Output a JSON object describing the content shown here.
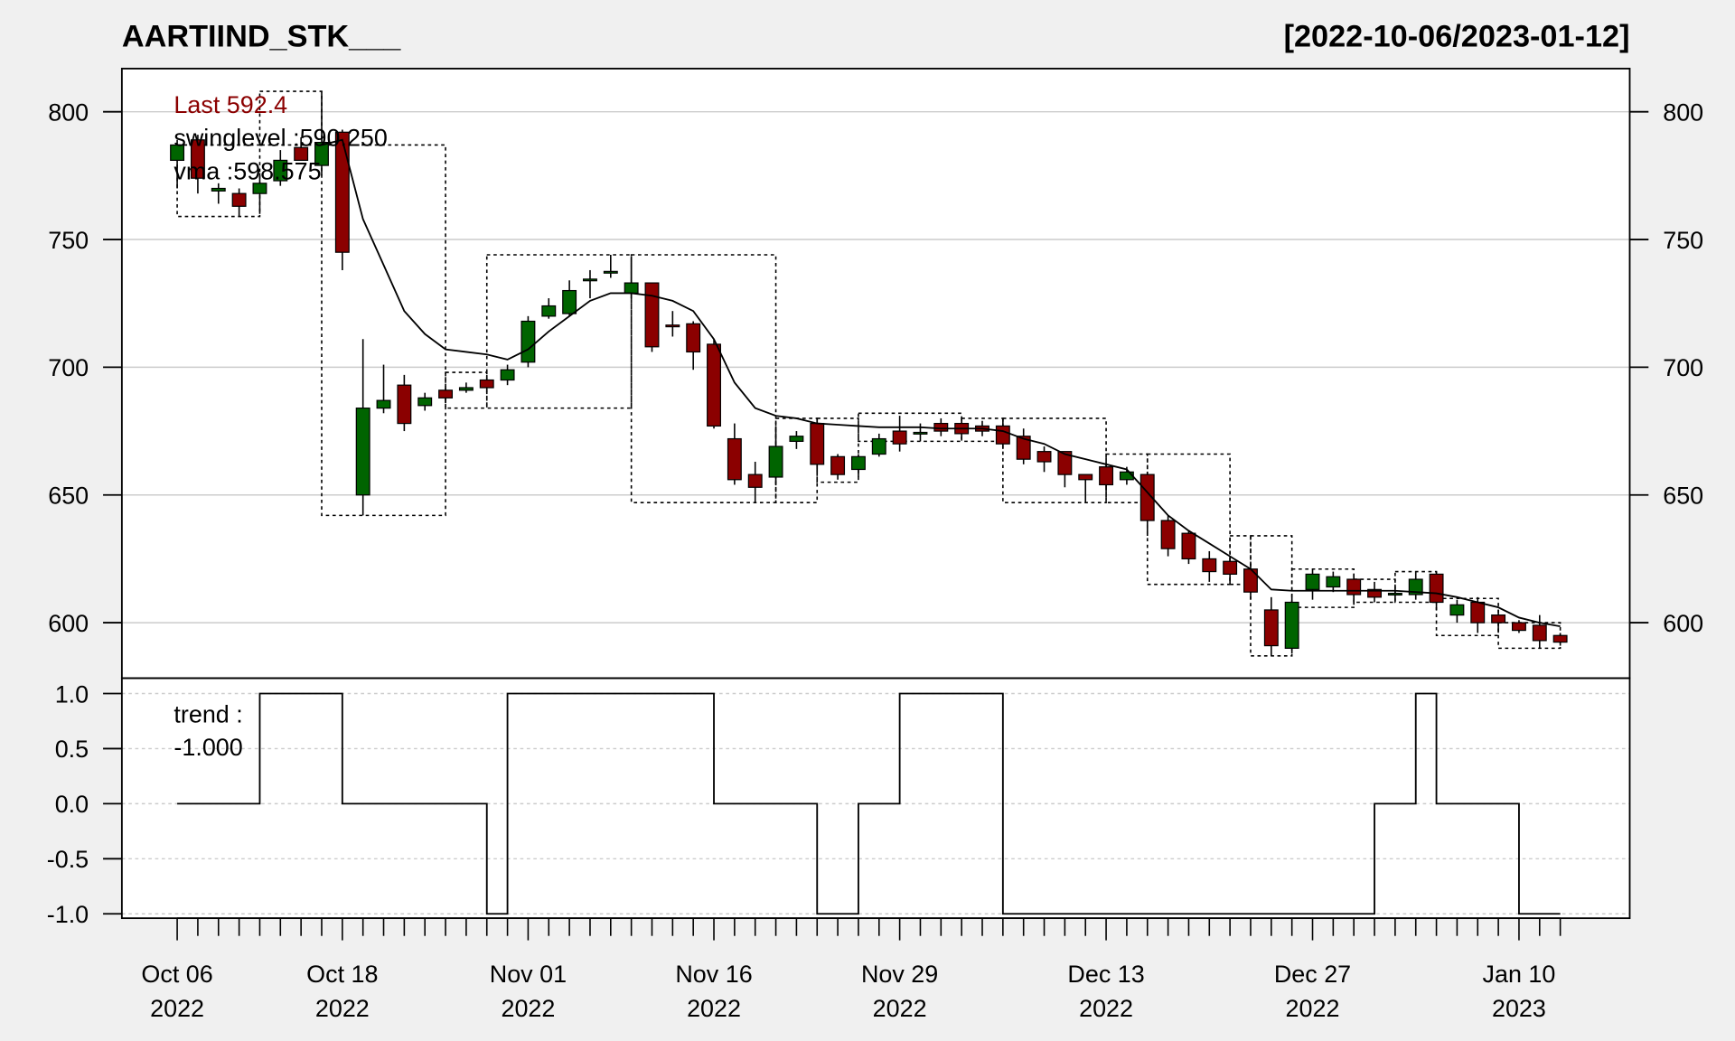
{
  "chart_data": {
    "type": "candlestick",
    "title": "AARTIIND_STK___",
    "date_range": "[2022-10-06/2023-01-12]",
    "annotations": [
      {
        "text": "Last 592.4",
        "color": "#8b0000"
      },
      {
        "text": "swinglevel :590.250",
        "color": "#000000"
      },
      {
        "text": "vma :598.575",
        "color": "#000000"
      }
    ],
    "categories": [
      "Oct 06\n2022",
      null,
      null,
      null,
      null,
      null,
      null,
      null,
      "Oct 18\n2022",
      null,
      null,
      null,
      null,
      null,
      null,
      null,
      null,
      "Nov 01\n2022",
      null,
      null,
      null,
      null,
      null,
      null,
      null,
      null,
      "Nov 16\n2022",
      null,
      null,
      null,
      null,
      null,
      null,
      null,
      null,
      "Nov 29\n2022",
      null,
      null,
      null,
      null,
      null,
      null,
      null,
      null,
      null,
      "Dec 13\n2022",
      null,
      null,
      null,
      null,
      null,
      null,
      null,
      null,
      null,
      "Dec 27\n2022",
      null,
      null,
      null,
      null,
      null,
      null,
      null,
      null,
      null,
      "Jan 10\n2023",
      null,
      null
    ],
    "open": [
      781,
      789,
      769,
      768,
      768,
      773,
      786,
      779,
      792,
      650,
      684,
      693,
      685,
      691,
      691,
      695,
      695,
      702,
      720,
      721,
      734,
      737,
      729,
      733,
      716.5,
      717,
      709,
      672,
      658,
      657,
      671,
      678,
      665,
      660,
      666,
      675,
      674,
      678,
      678,
      677,
      677,
      673,
      667,
      667,
      658,
      661,
      656,
      658,
      640,
      635,
      625,
      624,
      621,
      605,
      590,
      613,
      614,
      617,
      613,
      611,
      611,
      619,
      603,
      608,
      603,
      600,
      599,
      595
    ],
    "high": [
      789,
      791,
      772,
      770,
      776,
      785,
      790,
      808,
      793,
      711,
      701,
      697,
      690,
      692,
      694,
      697,
      701,
      720,
      727,
      734,
      738,
      744,
      743,
      733,
      722,
      718,
      711,
      678,
      663,
      677,
      675,
      680,
      666,
      666,
      674,
      681,
      678,
      680,
      680,
      679,
      680,
      676,
      669,
      667,
      658,
      662,
      661,
      659,
      642,
      636,
      628,
      626,
      623,
      610,
      610,
      621,
      620,
      619,
      616,
      614,
      620,
      620,
      609,
      610,
      605,
      601,
      603,
      596
    ],
    "low": [
      770,
      768,
      764,
      759,
      760,
      771,
      781,
      775,
      738,
      642,
      682,
      675,
      683,
      686,
      690,
      690,
      693,
      700,
      719,
      720,
      727,
      735,
      727,
      706,
      712,
      699,
      676,
      654,
      647,
      654,
      668,
      659,
      656,
      657,
      665,
      667,
      671,
      673,
      672,
      673,
      668,
      662,
      659,
      653,
      647,
      652,
      654,
      634,
      626,
      623,
      616,
      615,
      609,
      587,
      588,
      609,
      612,
      607,
      608,
      609,
      609,
      605,
      600,
      596,
      597,
      596,
      590,
      591
    ],
    "close": [
      787,
      774,
      770,
      763,
      772,
      781,
      781,
      788,
      745,
      684,
      687,
      678,
      688,
      688,
      692,
      692,
      699,
      718,
      724,
      730,
      734.5,
      737.5,
      733,
      708,
      716,
      706,
      677,
      656,
      653,
      669,
      673,
      662,
      658,
      665,
      672,
      670,
      674.5,
      675,
      674,
      675,
      670,
      664,
      663,
      658,
      656,
      654,
      659,
      640,
      629,
      625,
      620,
      619,
      612,
      591,
      608,
      619,
      618,
      611,
      610,
      611.5,
      617,
      608,
      607,
      600,
      600,
      597,
      593,
      592.4
    ],
    "up_color": "#006400",
    "down_color": "#8b0000",
    "ylim": [
      578.3,
      816.9
    ],
    "yticks": [
      600,
      650,
      700,
      750,
      800
    ],
    "grid": true,
    "vma": {
      "color": "#000000",
      "values": [
        null,
        null,
        null,
        null,
        null,
        null,
        null,
        787,
        789,
        758,
        740,
        722,
        713,
        707,
        706,
        705,
        703,
        707,
        714,
        720,
        726,
        729,
        729,
        728,
        726,
        722,
        711,
        694,
        684,
        681,
        680,
        678,
        677.5,
        677,
        676.5,
        676.5,
        676.5,
        676,
        676,
        676,
        675,
        672,
        670,
        666,
        664,
        662,
        660,
        651,
        642,
        636,
        631,
        626,
        621,
        613,
        612.5,
        612.5,
        612.5,
        612.5,
        612.5,
        612.5,
        612,
        611.5,
        610,
        608,
        606,
        602,
        600,
        598.575
      ]
    },
    "boxes": [
      {
        "from": 0,
        "to": 4,
        "low": 759,
        "high": 787
      },
      {
        "from": 4,
        "to": 7,
        "low": 787,
        "high": 808
      },
      {
        "from": 7,
        "to": 13,
        "low": 642,
        "high": 787
      },
      {
        "from": 13,
        "to": 15,
        "low": 684,
        "high": 698
      },
      {
        "from": 15,
        "to": 22,
        "low": 684,
        "high": 744
      },
      {
        "from": 22,
        "to": 29,
        "low": 647,
        "high": 744
      },
      {
        "from": 29,
        "to": 31,
        "low": 647,
        "high": 680
      },
      {
        "from": 31,
        "to": 33,
        "low": 655,
        "high": 680
      },
      {
        "from": 33,
        "to": 38,
        "low": 671,
        "high": 682
      },
      {
        "from": 38,
        "to": 40,
        "low": 671,
        "high": 680
      },
      {
        "from": 40,
        "to": 45,
        "low": 647,
        "high": 680
      },
      {
        "from": 45,
        "to": 47,
        "low": 647,
        "high": 666
      },
      {
        "from": 47,
        "to": 51,
        "low": 615,
        "high": 666
      },
      {
        "from": 51,
        "to": 52,
        "low": 615,
        "high": 634
      },
      {
        "from": 52,
        "to": 54,
        "low": 587,
        "high": 634
      },
      {
        "from": 54,
        "to": 57,
        "low": 606,
        "high": 621
      },
      {
        "from": 57,
        "to": 59,
        "low": 608,
        "high": 617
      },
      {
        "from": 59,
        "to": 61,
        "low": 608,
        "high": 620
      },
      {
        "from": 61,
        "to": 64,
        "low": 595,
        "high": 609.5
      },
      {
        "from": 64,
        "to": 67,
        "low": 590,
        "high": 600
      }
    ],
    "trend": {
      "type": "step",
      "label": "trend :",
      "value_label": "-1.000",
      "color": "#000000",
      "values": [
        0,
        0,
        0,
        0,
        1,
        1,
        1,
        1,
        0,
        0,
        0,
        0,
        0,
        0,
        0,
        -1,
        1,
        1,
        1,
        1,
        1,
        1,
        1,
        1,
        1,
        1,
        0,
        0,
        0,
        0,
        0,
        -1,
        -1,
        0,
        0,
        1,
        1,
        1,
        1,
        1,
        -1,
        -1,
        -1,
        -1,
        -1,
        -1,
        -1,
        -1,
        -1,
        -1,
        -1,
        -1,
        -1,
        -1,
        -1,
        -1,
        -1,
        -1,
        0,
        0,
        1,
        0,
        0,
        0,
        0,
        -1,
        -1,
        -1
      ],
      "ylim": [
        -1.04,
        1.14
      ],
      "yticks": [
        {
          "value": 1,
          "label": "1.0"
        },
        0.5,
        {
          "value": 0,
          "label": "0.0"
        },
        -0.5,
        {
          "value": -1,
          "label": "-1.0"
        }
      ],
      "grid": true
    }
  }
}
